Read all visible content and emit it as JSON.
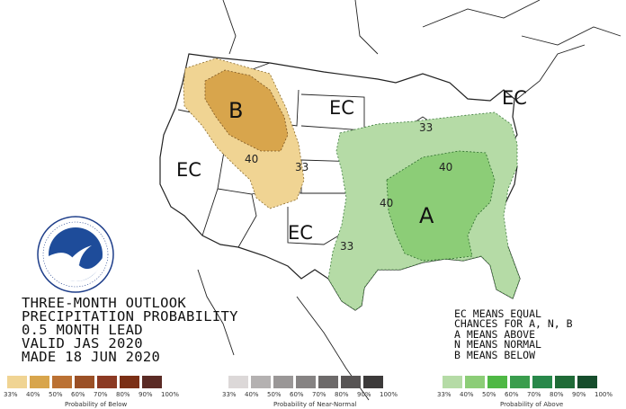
{
  "map": {
    "labels": {
      "ec_northwest": "EC",
      "ec_north_plains": "EC",
      "ec_northeast": "EC",
      "ec_south": "EC",
      "below": "B",
      "above": "A"
    },
    "contours": {
      "below_40": "40",
      "below_33": "33",
      "above_33_north": "33",
      "above_40_east": "40",
      "above_40_south": "40",
      "above_33_south": "33"
    }
  },
  "title_block": {
    "line1": "THREE-MONTH OUTLOOK",
    "line2": "PRECIPITATION PROBABILITY",
    "line3": "0.5 MONTH LEAD",
    "line4": "VALID JAS 2020",
    "line5": "MADE 18 JUN 2020"
  },
  "key": {
    "line1": "EC MEANS EQUAL",
    "line2": "CHANCES FOR A, N, B",
    "line3": "A MEANS ABOVE",
    "line4": "N MEANS NORMAL",
    "line5": "B MEANS BELOW"
  },
  "scales": {
    "below": {
      "label": "Probability of Below",
      "ticks": [
        "33%",
        "40%",
        "50%",
        "60%",
        "70%",
        "80%",
        "90%",
        "100%"
      ],
      "colors": [
        "#f0d493",
        "#d8a54c",
        "#bb7133",
        "#9b5026",
        "#8c3a23",
        "#7b2f15",
        "#5b2b25"
      ]
    },
    "normal": {
      "label": "Probability of Near-Normal",
      "ticks": [
        "33%",
        "40%",
        "50%",
        "60%",
        "70%",
        "80%",
        "90%",
        "100%"
      ],
      "colors": [
        "#dcd8d8",
        "#b4b1b1",
        "#9a9797",
        "#868383",
        "#6d6a6a",
        "#575454",
        "#3c3a3a"
      ]
    },
    "above": {
      "label": "Probability of Above",
      "ticks": [
        "33%",
        "40%",
        "50%",
        "60%",
        "70%",
        "80%",
        "90%",
        "100%"
      ],
      "colors": [
        "#b5dba6",
        "#8ccd77",
        "#4fb845",
        "#3a9d4d",
        "#28884a",
        "#1f6b37",
        "#164d2c"
      ]
    }
  },
  "colors": {
    "below_33": "#f0d493",
    "below_40": "#d8a54c",
    "above_33": "#b5dba6",
    "above_40": "#8ccd77"
  }
}
